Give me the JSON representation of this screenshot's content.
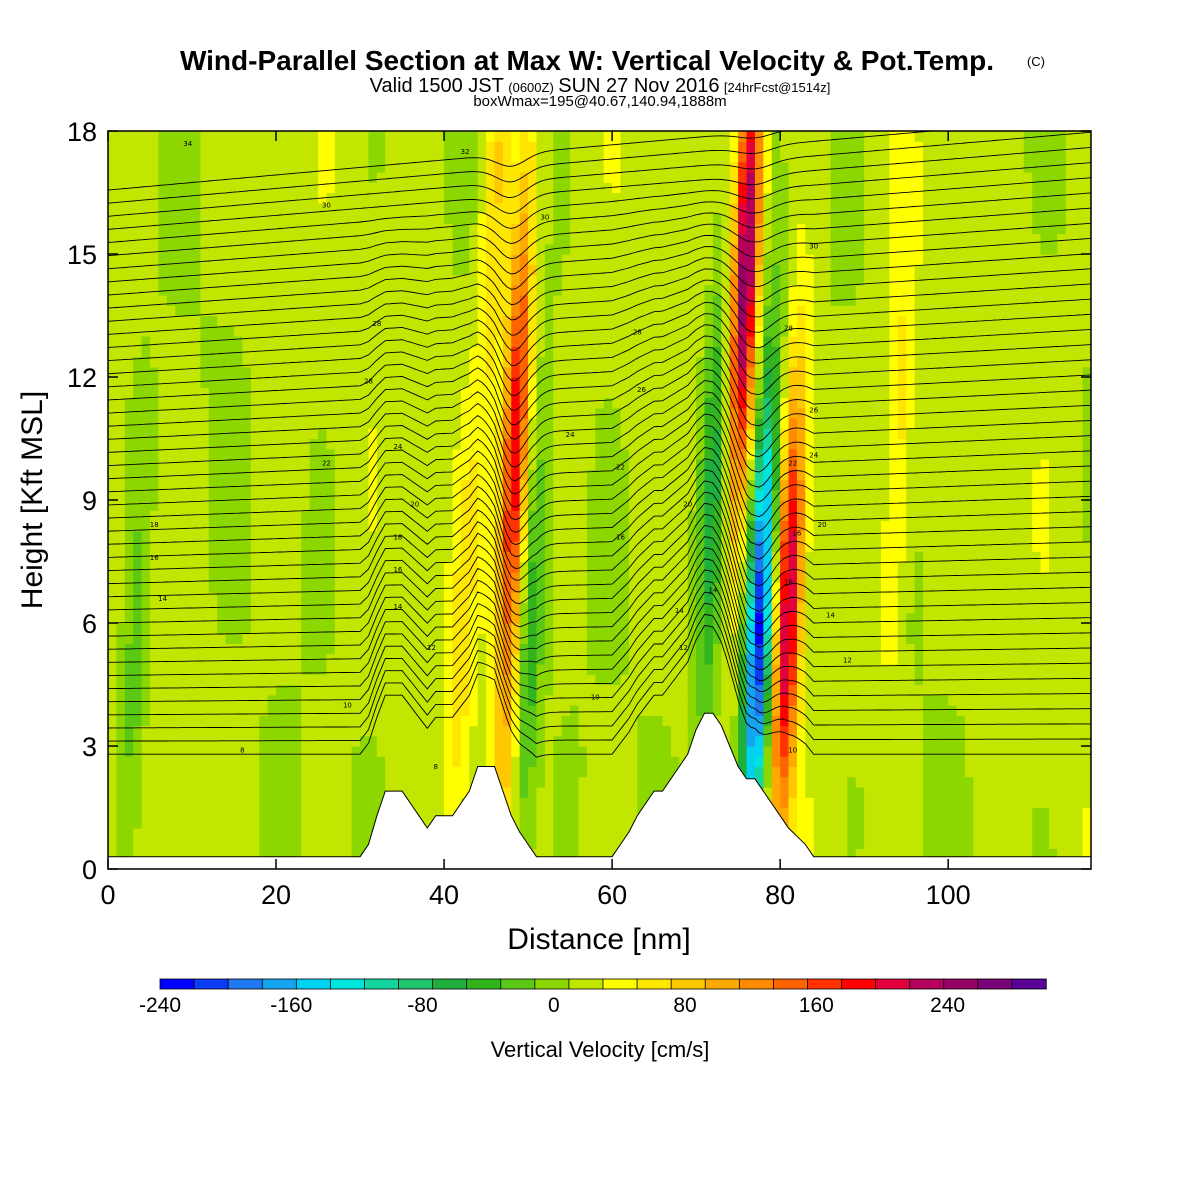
{
  "chart_data": {
    "type": "heatmap",
    "title": "Wind-Parallel Section at Max W: Vertical Velocity & Pot.Temp.",
    "title_mark": "(C)",
    "subtitle_parts": [
      "Valid 1500 JST",
      "(0600Z)",
      "SUN 27 Nov 2016",
      "[24hrFcst@1514z]"
    ],
    "subtitle2": "boxWmax=195@40.67,140.94,1888m",
    "xlabel": "Distance [nm]",
    "ylabel": "Height [Kft MSL]",
    "xlim": [
      0,
      117
    ],
    "ylim": [
      0,
      18
    ],
    "x_ticks": [
      0,
      20,
      40,
      60,
      80,
      100
    ],
    "y_ticks": [
      0,
      3,
      6,
      9,
      12,
      15,
      18
    ],
    "colorbar": {
      "label": "Vertical Velocity [cm/s]",
      "min": -240,
      "max": 300,
      "step": 20,
      "tick_values": [
        -240,
        -160,
        -80,
        0,
        80,
        160,
        240
      ],
      "colors": [
        "#0000ff",
        "#0a3cf5",
        "#1e78f0",
        "#14a5f0",
        "#00d2f0",
        "#00e6dc",
        "#14d7a0",
        "#1ec36e",
        "#1eaf3c",
        "#32b41e",
        "#5ac814",
        "#8cd700",
        "#c3e600",
        "#ffff00",
        "#ffe600",
        "#ffc800",
        "#ffaa00",
        "#ff8c00",
        "#ff6400",
        "#ff3200",
        "#ff0000",
        "#e1003c",
        "#b4005a",
        "#960064",
        "#780078",
        "#5a0096"
      ]
    },
    "terrain_profile": {
      "x": [
        0,
        30,
        31,
        32,
        33,
        34,
        35,
        36,
        37,
        38,
        39,
        40,
        41,
        42,
        43,
        44,
        45,
        46,
        47,
        48,
        49,
        50,
        51,
        52,
        60,
        61,
        62,
        63,
        64,
        65,
        66,
        67,
        68,
        69,
        70,
        71,
        72,
        73,
        74,
        75,
        76,
        77,
        78,
        79,
        80,
        81,
        82,
        83,
        84,
        85,
        117
      ],
      "height": [
        0.3,
        0.3,
        0.6,
        1.3,
        1.9,
        1.9,
        1.9,
        1.6,
        1.3,
        1.0,
        1.3,
        1.3,
        1.3,
        1.6,
        1.9,
        2.5,
        2.5,
        2.5,
        1.9,
        1.3,
        0.9,
        0.6,
        0.3,
        0.3,
        0.3,
        0.6,
        0.9,
        1.3,
        1.6,
        1.9,
        1.9,
        2.2,
        2.5,
        2.8,
        3.4,
        3.8,
        3.8,
        3.5,
        3.0,
        2.5,
        2.2,
        2.2,
        1.9,
        1.6,
        1.3,
        1.0,
        0.8,
        0.6,
        0.3,
        0.3,
        0.3
      ]
    },
    "w_features": [
      {
        "x": 48.5,
        "z": 10.5,
        "w": 180
      },
      {
        "x": 46.0,
        "z": 16.0,
        "w": 60
      },
      {
        "x": 47.5,
        "z": 3.0,
        "w": 40
      },
      {
        "x": 50.0,
        "z": 5.0,
        "w": -60
      },
      {
        "x": 76.0,
        "z": 15.0,
        "w": 240
      },
      {
        "x": 77.5,
        "z": 6.0,
        "w": -240
      },
      {
        "x": 81.0,
        "z": 6.5,
        "w": 200
      },
      {
        "x": 72.0,
        "z": 9.0,
        "w": -80
      },
      {
        "x": 42.0,
        "z": 5.0,
        "w": 40
      },
      {
        "x": 3.0,
        "z": 4.0,
        "w": -40
      },
      {
        "x": 94.0,
        "z": 10.0,
        "w": 50
      }
    ],
    "theta_contour_labels": [
      {
        "text": "34",
        "x": 9.5,
        "z": 17.7
      },
      {
        "text": "32",
        "x": 42.5,
        "z": 17.5
      },
      {
        "text": "30",
        "x": 26,
        "z": 16.2
      },
      {
        "text": "30",
        "x": 52,
        "z": 15.9
      },
      {
        "text": "30",
        "x": 84,
        "z": 15.2
      },
      {
        "text": "28",
        "x": 32,
        "z": 13.3
      },
      {
        "text": "28",
        "x": 63,
        "z": 13.1
      },
      {
        "text": "28",
        "x": 81,
        "z": 13.2
      },
      {
        "text": "28",
        "x": 31,
        "z": 11.9
      },
      {
        "text": "26",
        "x": 63.5,
        "z": 11.7
      },
      {
        "text": "26",
        "x": 84,
        "z": 11.2
      },
      {
        "text": "24",
        "x": 34.5,
        "z": 10.3
      },
      {
        "text": "24",
        "x": 55,
        "z": 10.6
      },
      {
        "text": "24",
        "x": 84,
        "z": 10.1
      },
      {
        "text": "22",
        "x": 26,
        "z": 9.9
      },
      {
        "text": "22",
        "x": 61,
        "z": 9.8
      },
      {
        "text": "22",
        "x": 81.5,
        "z": 9.9
      },
      {
        "text": "20",
        "x": 36.5,
        "z": 8.9
      },
      {
        "text": "20",
        "x": 69,
        "z": 8.9
      },
      {
        "text": "20",
        "x": 85,
        "z": 8.4
      },
      {
        "text": "18",
        "x": 5.5,
        "z": 8.4
      },
      {
        "text": "18",
        "x": 34.5,
        "z": 8.1
      },
      {
        "text": "16",
        "x": 61,
        "z": 8.1
      },
      {
        "text": "16",
        "x": 82,
        "z": 8.2
      },
      {
        "text": "16",
        "x": 5.5,
        "z": 7.6
      },
      {
        "text": "16",
        "x": 34.5,
        "z": 7.3
      },
      {
        "text": "16",
        "x": 81,
        "z": 7.0
      },
      {
        "text": "14",
        "x": 6.5,
        "z": 6.6
      },
      {
        "text": "14",
        "x": 34.5,
        "z": 6.4
      },
      {
        "text": "14",
        "x": 68,
        "z": 6.3
      },
      {
        "text": "14",
        "x": 72,
        "z": 6.8
      },
      {
        "text": "14",
        "x": 86,
        "z": 6.2
      },
      {
        "text": "12",
        "x": 38.5,
        "z": 5.4
      },
      {
        "text": "12",
        "x": 68.5,
        "z": 5.4
      },
      {
        "text": "12",
        "x": 88,
        "z": 5.1
      },
      {
        "text": "10",
        "x": 28.5,
        "z": 4.0
      },
      {
        "text": "10",
        "x": 58,
        "z": 4.2
      },
      {
        "text": "10",
        "x": 81.5,
        "z": 2.9
      },
      {
        "text": "8",
        "x": 16,
        "z": 2.9
      },
      {
        "text": "8",
        "x": 39,
        "z": 2.5
      }
    ]
  }
}
